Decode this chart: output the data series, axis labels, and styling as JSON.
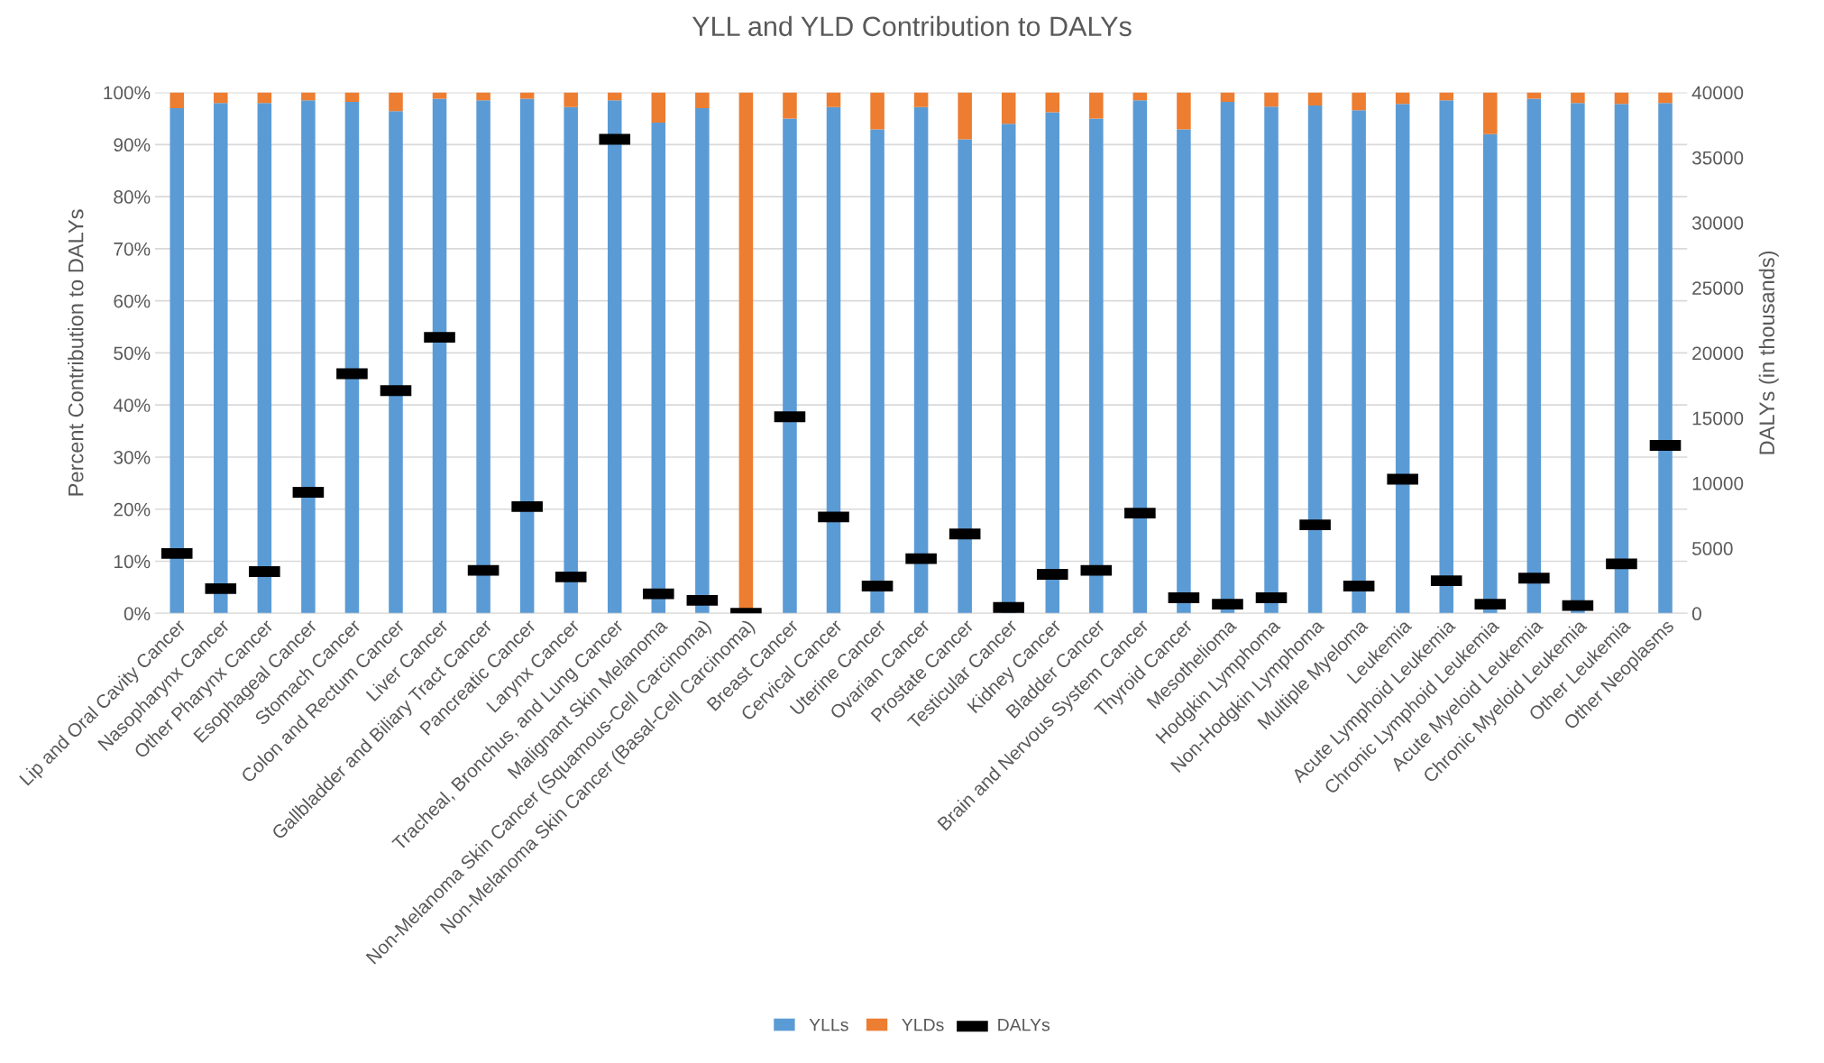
{
  "chart_data": {
    "type": "bar",
    "stacked": true,
    "title": "YLL and YLD Contribution to DALYs",
    "ylabel": "Percent Contribution to DALYs",
    "y2label": "DALYs (in thousands)",
    "categories": [
      "Lip and Oral Cavity Cancer",
      "Nasopharynx Cancer",
      "Other Pharynx Cancer",
      "Esophageal Cancer",
      "Stomach Cancer",
      "Colon and Rectum Cancer",
      "Liver Cancer",
      "Gallbladder and Biliary Tract Cancer",
      "Pancreatic Cancer",
      "Larynx Cancer",
      "Tracheal, Bronchus, and Lung Cancer",
      "Malignant Skin Melanoma",
      "Non-Melanoma Skin Cancer (Squamous-Cell Carcinoma)",
      "Non-Melanoma Skin Cancer (Basal-Cell Carcinoma)",
      "Breast Cancer",
      "Cervical Cancer",
      "Uterine Cancer",
      "Ovarian Cancer",
      "Prostate Cancer",
      "Testicular Cancer",
      "Kidney Cancer",
      "Bladder Cancer",
      "Brain and Nervous System Cancer",
      "Thyroid Cancer",
      "Mesothelioma",
      "Hodgkin Lymphoma",
      "Non-Hodgkin Lymphoma",
      "Multiple Myeloma",
      "Leukemia",
      "Acute Lymphoid Leukemia",
      "Chronic Lymphoid Leukemia",
      "Acute Myeloid Leukemia",
      "Chronic Myeloid Leukemia",
      "Other Leukemia",
      "Other Neoplasms"
    ],
    "series": [
      {
        "name": "YLLs",
        "color": "#5b9bd5",
        "values": [
          97,
          98,
          98,
          98.5,
          98.2,
          96.4,
          98.8,
          98.5,
          98.8,
          97.2,
          98.5,
          94.2,
          97,
          0,
          95,
          97.2,
          92.9,
          97.2,
          91,
          94,
          96.2,
          95,
          98.5,
          92.9,
          98.2,
          97.3,
          97.5,
          96.6,
          97.8,
          98.5,
          92,
          98.8,
          98,
          97.8,
          98
        ]
      },
      {
        "name": "YLDs",
        "color": "#ed7d31",
        "values": [
          3,
          2,
          2,
          1.5,
          1.8,
          3.6,
          1.2,
          1.5,
          1.2,
          2.8,
          1.5,
          5.8,
          3,
          100,
          5,
          2.8,
          7.1,
          2.8,
          9,
          6,
          3.8,
          5,
          1.5,
          7.1,
          1.8,
          2.7,
          2.5,
          3.4,
          2.2,
          1.5,
          8,
          1.2,
          2,
          2.2,
          2
        ]
      },
      {
        "name": "DALYs",
        "type": "scatter",
        "axis": "y2",
        "marker": "square",
        "color": "#000000",
        "values": [
          4600,
          1900,
          3200,
          9300,
          18400,
          17100,
          21200,
          3300,
          8200,
          2800,
          36400,
          1500,
          1000,
          0,
          15100,
          7400,
          2100,
          4200,
          6100,
          450,
          3000,
          3300,
          7700,
          1200,
          700,
          1200,
          6800,
          2100,
          10300,
          2500,
          700,
          2700,
          600,
          3800,
          12900
        ]
      }
    ],
    "ylim": [
      0,
      100
    ],
    "yticks": [
      {
        "value": 0,
        "label": "0%"
      },
      {
        "value": 10,
        "label": "10%"
      },
      {
        "value": 20,
        "label": "20%"
      },
      {
        "value": 30,
        "label": "30%"
      },
      {
        "value": 40,
        "label": "40%"
      },
      {
        "value": 50,
        "label": "50%"
      },
      {
        "value": 60,
        "label": "60%"
      },
      {
        "value": 70,
        "label": "70%"
      },
      {
        "value": 80,
        "label": "80%"
      },
      {
        "value": 90,
        "label": "90%"
      },
      {
        "value": 100,
        "label": "100%"
      }
    ],
    "y2lim": [
      0,
      40000
    ],
    "y2ticks": [
      0,
      5000,
      10000,
      15000,
      20000,
      25000,
      30000,
      35000,
      40000
    ],
    "grid": "y",
    "legend": "bottom"
  }
}
